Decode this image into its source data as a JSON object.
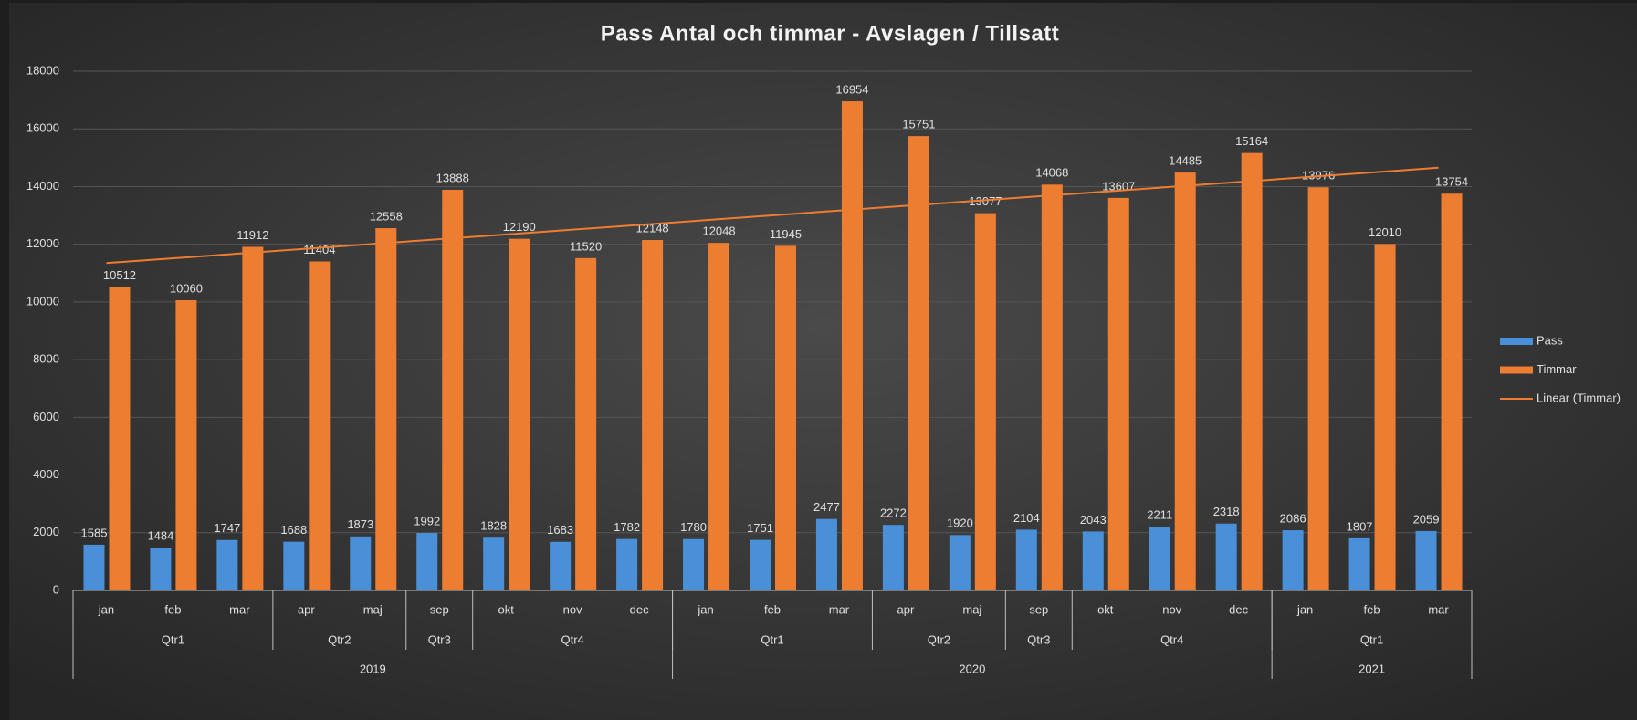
{
  "chart_data": {
    "type": "bar",
    "title": "Pass Antal och timmar - Avslagen / Tillsatt",
    "categories": [
      "jan",
      "feb",
      "mar",
      "apr",
      "maj",
      "sep",
      "okt",
      "nov",
      "dec",
      "jan",
      "feb",
      "mar",
      "apr",
      "maj",
      "sep",
      "okt",
      "nov",
      "dec",
      "jan",
      "feb",
      "mar"
    ],
    "quarter_groups": [
      {
        "label": "Qtr1",
        "span": 3
      },
      {
        "label": "Qtr2",
        "span": 2
      },
      {
        "label": "Qtr3",
        "span": 1
      },
      {
        "label": "Qtr4",
        "span": 3
      },
      {
        "label": "Qtr1",
        "span": 3
      },
      {
        "label": "Qtr2",
        "span": 2
      },
      {
        "label": "Qtr3",
        "span": 1
      },
      {
        "label": "Qtr4",
        "span": 3
      },
      {
        "label": "Qtr1",
        "span": 3
      }
    ],
    "year_groups": [
      {
        "label": "2019",
        "span": 9
      },
      {
        "label": "2020",
        "span": 9
      },
      {
        "label": "2021",
        "span": 3
      }
    ],
    "series": [
      {
        "name": "Pass",
        "color": "#4a90d9",
        "values": [
          1585,
          1484,
          1747,
          1688,
          1873,
          1992,
          1828,
          1683,
          1782,
          1780,
          1751,
          2477,
          2272,
          1920,
          2104,
          2043,
          2211,
          2318,
          2086,
          1807,
          2059
        ]
      },
      {
        "name": "Timmar",
        "color": "#ed7d31",
        "values": [
          10512,
          10060,
          11912,
          11404,
          12558,
          13888,
          12190,
          11520,
          12148,
          12048,
          11945,
          16954,
          15751,
          13077,
          14068,
          13607,
          14485,
          15164,
          13976,
          12010,
          13754
        ]
      }
    ],
    "trendline": {
      "name": "Linear (Timmar)",
      "of": "Timmar",
      "kind": "linear",
      "color": "#ed7d31"
    },
    "ylim": [
      0,
      18000
    ],
    "yticks": [
      0,
      2000,
      4000,
      6000,
      8000,
      10000,
      12000,
      14000,
      16000,
      18000
    ],
    "grid": true,
    "legend": "right"
  }
}
